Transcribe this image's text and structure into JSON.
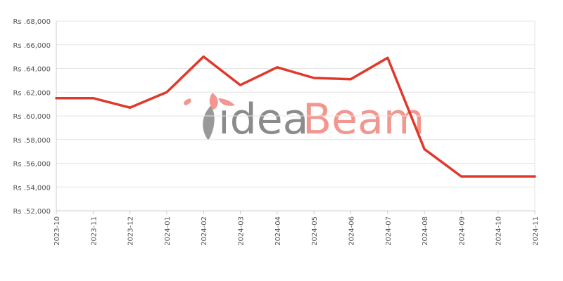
{
  "chart_data": {
    "type": "line",
    "title": "",
    "xlabel": "",
    "ylabel": "",
    "categories": [
      "2023-10",
      "2023-11",
      "2023-12",
      "2024-01",
      "2024-02",
      "2024-03",
      "2024-04",
      "2024-05",
      "2024-06",
      "2024-07",
      "2024-08",
      "2024-09",
      "2024-10",
      "2024-11"
    ],
    "series": [
      {
        "values": [
          61500,
          61500,
          60700,
          62000,
          65000,
          62600,
          64100,
          63200,
          63100,
          64900,
          57200,
          54900,
          54900,
          54900
        ]
      }
    ],
    "ylim": [
      52000,
      68000
    ],
    "yticks": [
      52000,
      54000,
      56000,
      58000,
      60000,
      62000,
      64000,
      66000,
      68000
    ],
    "ytick_labels": [
      "Rs .52,000",
      "Rs .54,000",
      "Rs .56,000",
      "Rs .58,000",
      "Rs .60,000",
      "Rs .62,000",
      "Rs .64,000",
      "Rs .66,000",
      "Rs .68,000"
    ],
    "grid": true,
    "legend": "none"
  },
  "colors": {
    "line": "#e0392b",
    "grid": "#e6e6e6",
    "axis": "#cccccc",
    "watermark_idea": "#777777",
    "watermark_beam": "#f1847c"
  },
  "watermark": {
    "part1": "ıdea",
    "part2": "Beam"
  }
}
